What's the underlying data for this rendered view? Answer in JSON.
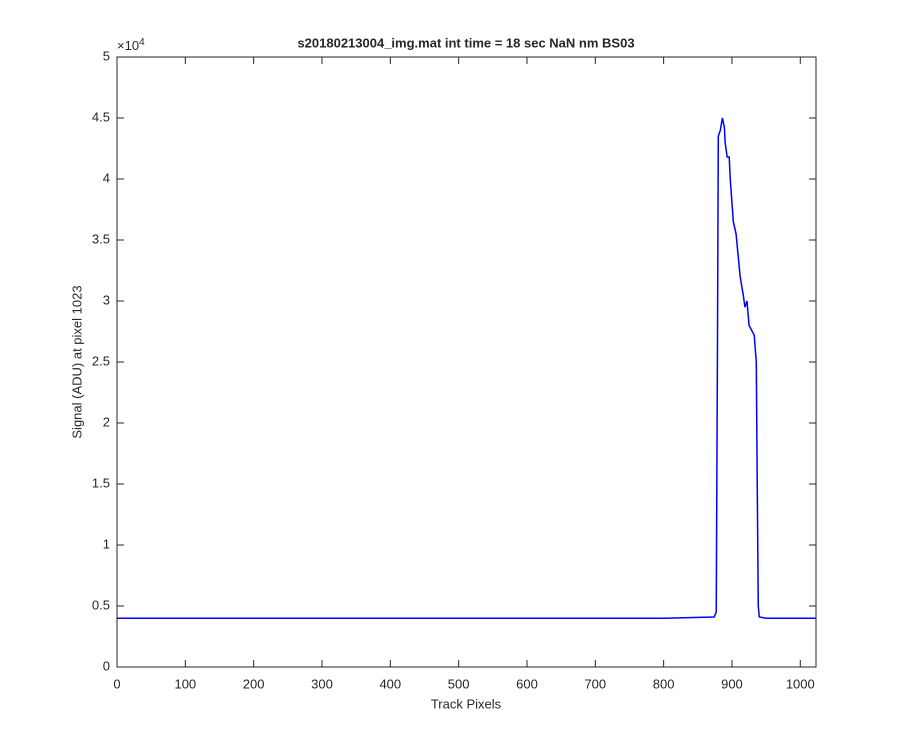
{
  "chart_data": {
    "type": "line",
    "title": "s20180213004_img.mat int time = 18 sec  NaN nm BS03",
    "x_label": "Track Pixels",
    "y_label": "Signal (ADU) at pixel 1023",
    "y_multiplier": {
      "base": "×10",
      "exponent": "4"
    },
    "x": [
      0,
      100,
      200,
      300,
      400,
      500,
      600,
      700,
      800,
      874,
      877,
      878.7,
      880,
      883,
      886,
      889,
      890,
      893,
      896,
      897.5,
      902,
      906,
      912,
      916.5,
      919,
      922,
      925,
      929.7,
      932.6,
      935.6,
      937,
      938.5,
      940,
      950,
      1000,
      1023
    ],
    "series": [
      {
        "name": "Signal",
        "color": "#0000ff",
        "values": [
          0.4,
          0.4,
          0.4,
          0.4,
          0.4,
          0.4,
          0.4,
          0.4,
          0.4,
          0.41,
          0.45,
          2.5,
          4.35,
          4.4,
          4.5,
          4.42,
          4.3,
          4.18,
          4.18,
          4.0,
          3.65,
          3.55,
          3.2,
          3.05,
          2.95,
          3.0,
          2.8,
          2.75,
          2.72,
          2.5,
          1.5,
          0.5,
          0.41,
          0.4,
          0.4,
          0.4
        ]
      }
    ],
    "xlim": [
      0,
      1023
    ],
    "xticks": [
      0,
      100,
      200,
      300,
      400,
      500,
      600,
      700,
      800,
      900,
      1000
    ],
    "ylim": [
      0,
      5
    ],
    "yticks": [
      0,
      0.5,
      1,
      1.5,
      2,
      2.5,
      3,
      3.5,
      4,
      4.5,
      5
    ],
    "grid": false
  }
}
